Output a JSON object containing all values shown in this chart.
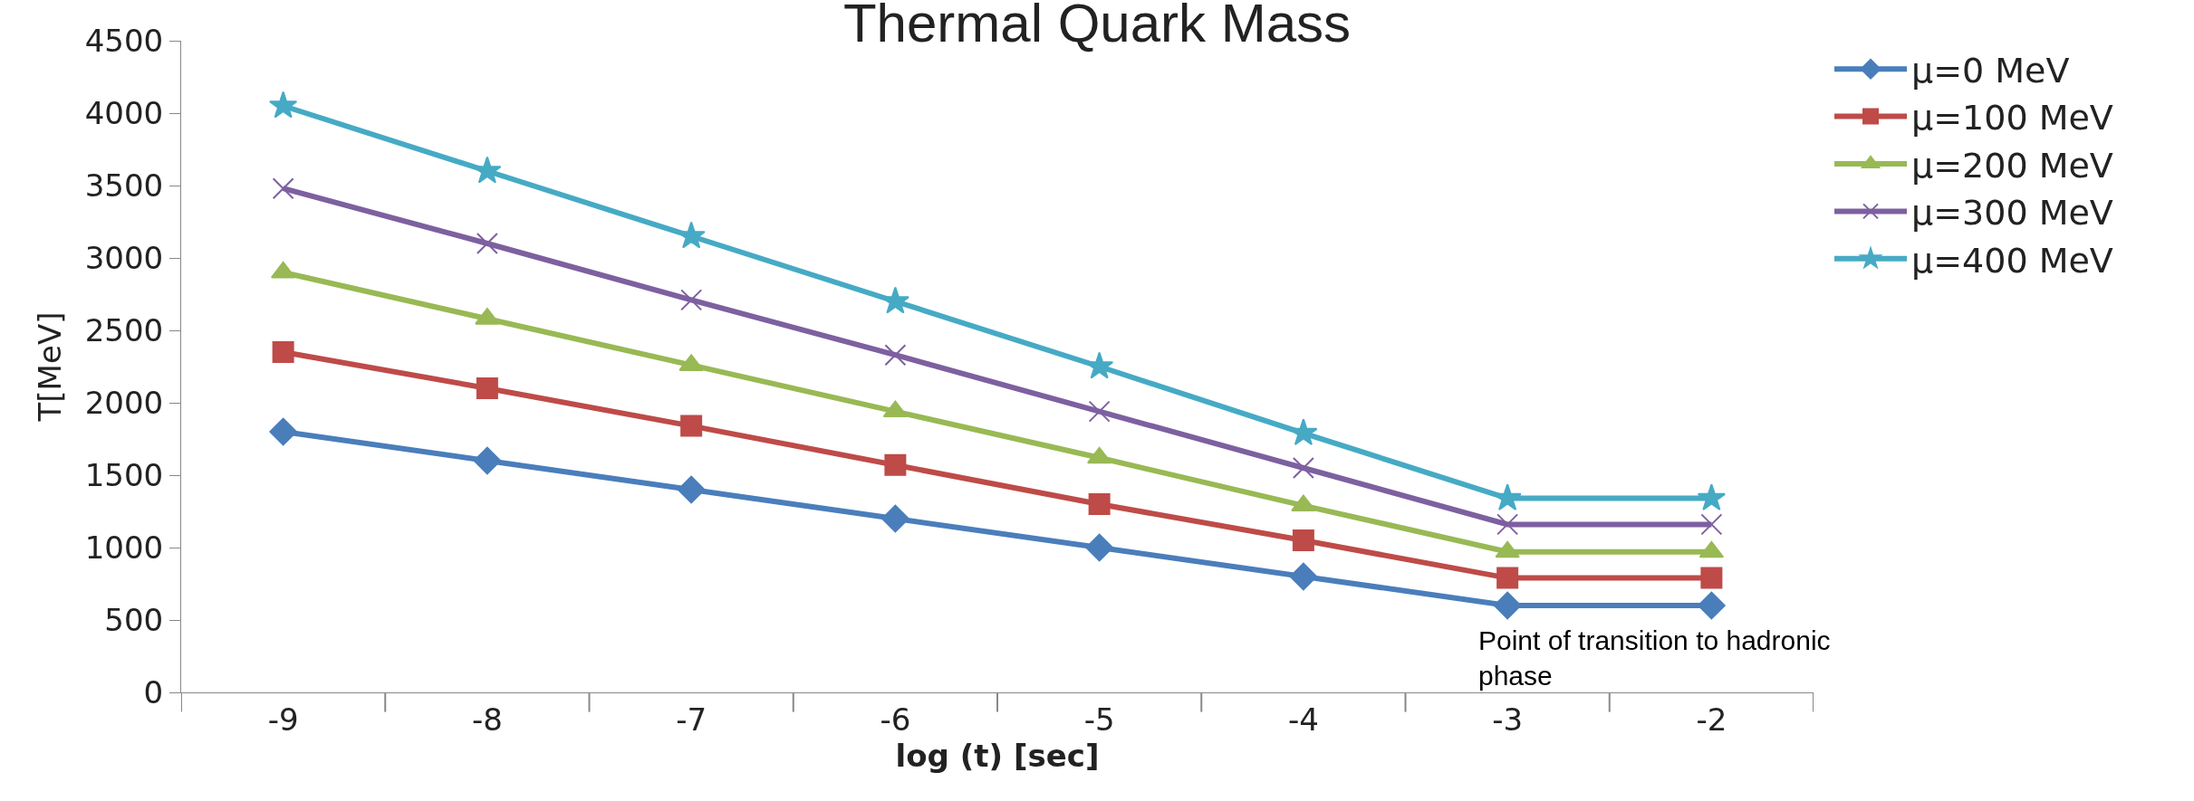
{
  "chart_data": {
    "type": "line",
    "title": "Thermal Quark Mass",
    "xlabel": "log (t) [sec]",
    "ylabel": "T[MeV]",
    "categories": [
      "-9",
      "-8",
      "-7",
      "-6",
      "-5",
      "-4",
      "-3",
      "-2"
    ],
    "series": [
      {
        "name": "μ=0 MeV",
        "color": "#4a7ebb",
        "marker": "diamond",
        "values": [
          1800,
          1600,
          1400,
          1200,
          1000,
          800,
          600,
          600
        ]
      },
      {
        "name": "μ=100 MeV",
        "color": "#be4b48",
        "marker": "square",
        "values": [
          2350,
          2100,
          1840,
          1570,
          1300,
          1050,
          790,
          790
        ]
      },
      {
        "name": "μ=200 MeV",
        "color": "#98b954",
        "marker": "triangle",
        "values": [
          2900,
          2580,
          2260,
          1940,
          1620,
          1290,
          970,
          970
        ]
      },
      {
        "name": "μ=300 MeV",
        "color": "#7d60a0",
        "marker": "cross",
        "values": [
          3480,
          3100,
          2710,
          2330,
          1940,
          1550,
          1160,
          1160
        ]
      },
      {
        "name": "μ=400 MeV",
        "color": "#46aac5",
        "marker": "star",
        "values": [
          4050,
          3600,
          3150,
          2700,
          2250,
          1790,
          1340,
          1340
        ]
      }
    ],
    "ylim": [
      0,
      4500
    ],
    "yticks": [
      0,
      500,
      1000,
      1500,
      2000,
      2500,
      3000,
      3500,
      4000,
      4500
    ],
    "legend": "right",
    "line_style": "solid",
    "annotations": [
      "Point of transition to hadronic\nphase"
    ]
  }
}
